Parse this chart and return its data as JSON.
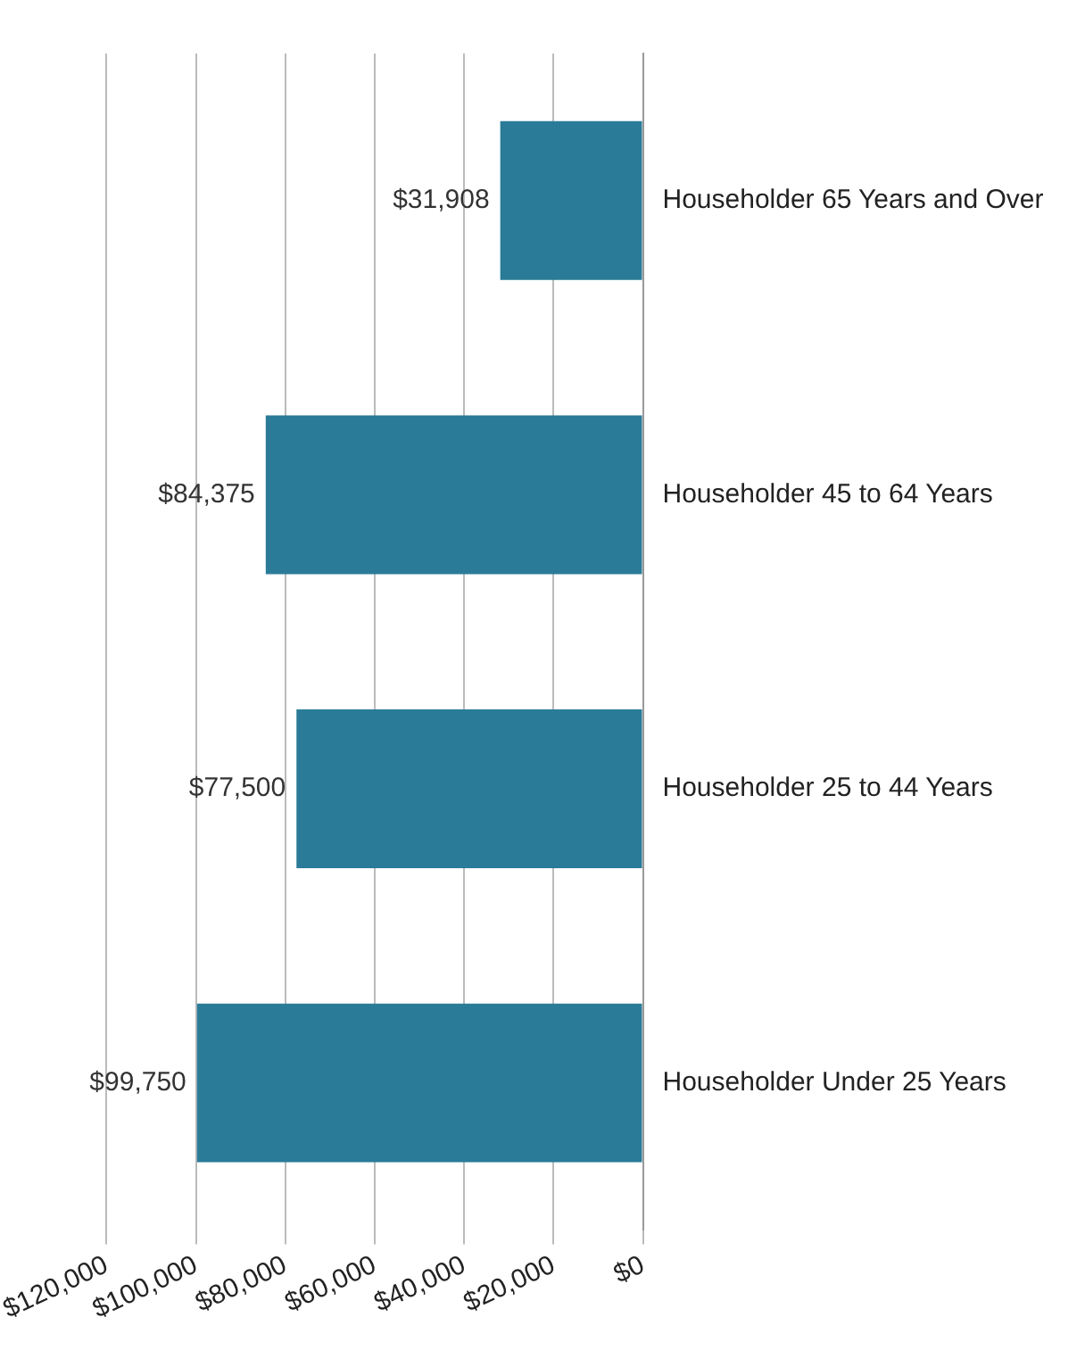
{
  "chart_data": {
    "type": "bar",
    "orientation": "horizontal",
    "categories": [
      "Householder 65 Years and Over",
      "Householder 45 to 64 Years",
      "Householder 25 to 44 Years",
      "Householder Under 25 Years"
    ],
    "values": [
      31908,
      84375,
      77500,
      99750
    ],
    "value_labels": [
      "$31,908",
      "$84,375",
      "$77,500",
      "$99,750"
    ],
    "color": "#2a7b98",
    "xlim": [
      120000,
      0
    ],
    "xticks": [
      {
        "value": 120000,
        "label": "$120,000"
      },
      {
        "value": 100000,
        "label": "$100,000"
      },
      {
        "value": 80000,
        "label": "$80,000"
      },
      {
        "value": 60000,
        "label": "$60,000"
      },
      {
        "value": 40000,
        "label": "$40,000"
      },
      {
        "value": 20000,
        "label": "$20,000"
      },
      {
        "value": 0,
        "label": "$0"
      }
    ],
    "grid": "x",
    "legend": false
  }
}
